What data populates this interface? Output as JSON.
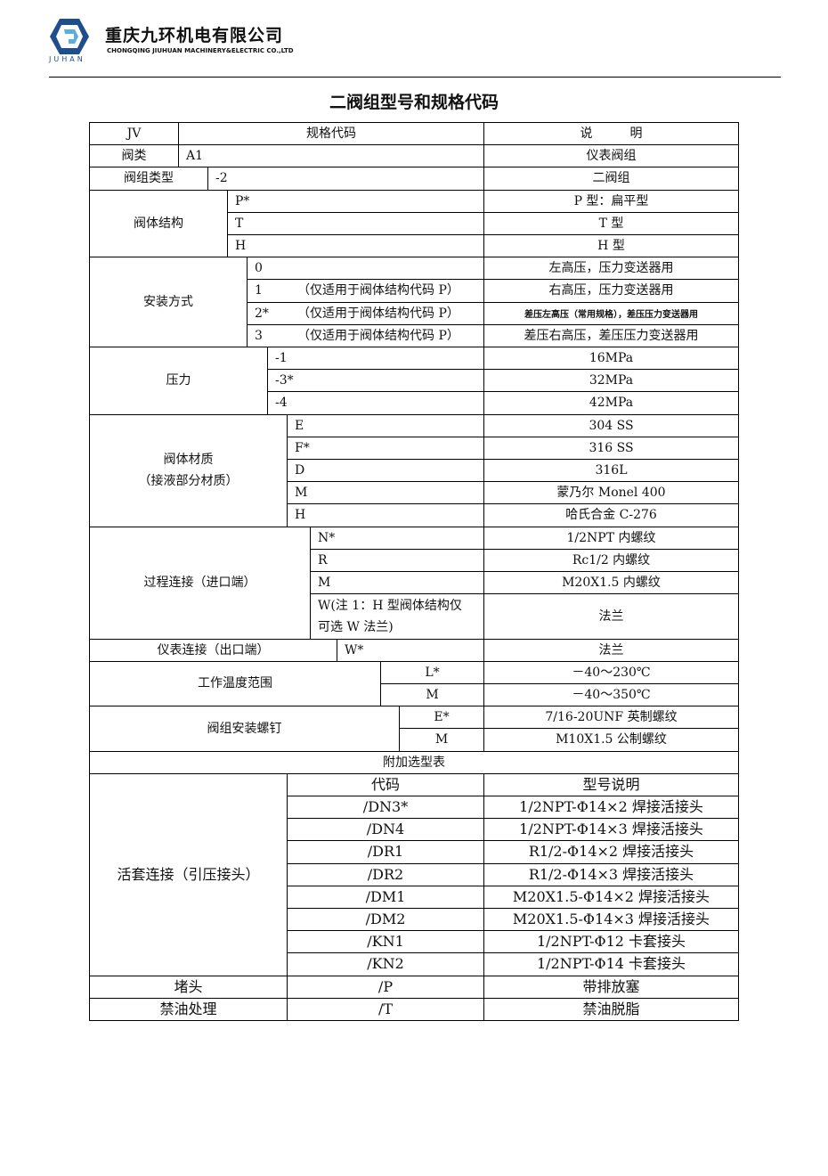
{
  "header": {
    "company_cn": "重庆九环机电有限公司",
    "company_en": "CHONGQING JIUHUAN MACHINERY&ELECTRIC CO.,LTD",
    "brand": "JUHAN",
    "logo_colors": [
      "#1f4e8c",
      "#5aaee0"
    ]
  },
  "doc_title": "二阀组型号和规格代码",
  "table_header": {
    "jv": "JV",
    "spec": "规格代码",
    "desc": "说　　　明"
  },
  "sections": [
    {
      "label": "阀类",
      "rows": [
        {
          "code": "A1",
          "desc": "仪表阀组"
        }
      ]
    },
    {
      "label": "阀组类型",
      "rows": [
        {
          "code": "-2",
          "desc": "二阀组"
        }
      ]
    },
    {
      "label": "阀体结构",
      "rows": [
        {
          "code": "P*",
          "desc": "P 型：扁平型"
        },
        {
          "code": "T",
          "desc": "T 型"
        },
        {
          "code": "H",
          "desc": "H 型"
        }
      ]
    },
    {
      "label": "安装方式",
      "rows": [
        {
          "code": "0",
          "desc": "左高压，压力变送器用"
        },
        {
          "code": "1",
          "note": "（仅适用于阀体结构代码 P）",
          "desc": "右高压，压力变送器用"
        },
        {
          "code": "2*",
          "note": "（仅适用于阀体结构代码 P）",
          "desc": "差压左高压（常用规格），差压压力变送器用"
        },
        {
          "code": "3",
          "note": "（仅适用于阀体结构代码 P）",
          "desc": "差压右高压，差压压力变送器用"
        }
      ]
    },
    {
      "label": "压力",
      "rows": [
        {
          "code": "-1",
          "desc": "16MPa"
        },
        {
          "code": "-3*",
          "desc": "32MPa"
        },
        {
          "code": "-4",
          "desc": "42MPa"
        }
      ]
    },
    {
      "label": "阀体材质\n（接液部分材质）",
      "rows": [
        {
          "code": "E",
          "desc": "304 SS"
        },
        {
          "code": "F*",
          "desc": "316 SS"
        },
        {
          "code": "D",
          "desc": "316L"
        },
        {
          "code": "M",
          "desc": "蒙乃尔 Monel 400"
        },
        {
          "code": "H",
          "desc": "哈氏合金 C-276"
        }
      ]
    },
    {
      "label": "过程连接（进口端）",
      "rows": [
        {
          "code": "N*",
          "desc": "1/2NPT 内螺纹"
        },
        {
          "code": "R",
          "desc": "Rc1/2 内螺纹"
        },
        {
          "code": "M",
          "desc": "M20X1.5 内螺纹"
        },
        {
          "code": "W(注 1：H 型阀体结构仅\n可选 W 法兰)",
          "desc": "法兰"
        }
      ]
    },
    {
      "label": "仪表连接（出口端）",
      "rows": [
        {
          "code": "W*",
          "desc": "法兰"
        }
      ]
    },
    {
      "label": "工作温度范围",
      "rows": [
        {
          "code": "L*",
          "desc": "－40～230℃"
        },
        {
          "code": "M",
          "desc": "－40～350℃"
        }
      ]
    },
    {
      "label": "阀组安装螺钉",
      "rows": [
        {
          "code": "E*",
          "desc": "7/16-20UNF 英制螺纹"
        },
        {
          "code": "M",
          "desc": "M10X1.5 公制螺纹"
        }
      ]
    }
  ],
  "addon": {
    "title": "附加选型表",
    "code_header": "代码",
    "desc_header": "型号说明",
    "groups": [
      {
        "label": "活套连接（引压接头）",
        "rows": [
          {
            "code": "/DN3*",
            "desc": "1/2NPT-Φ14×2 焊接活接头"
          },
          {
            "code": "/DN4",
            "desc": "1/2NPT-Φ14×3 焊接活接头"
          },
          {
            "code": "/DR1",
            "desc": "R1/2-Φ14×2 焊接活接头"
          },
          {
            "code": "/DR2",
            "desc": "R1/2-Φ14×3 焊接活接头"
          },
          {
            "code": "/DM1",
            "desc": "M20X1.5-Φ14×2 焊接活接头"
          },
          {
            "code": "/DM2",
            "desc": "M20X1.5-Φ14×3 焊接活接头"
          },
          {
            "code": "/KN1",
            "desc": "1/2NPT-Φ12 卡套接头"
          },
          {
            "code": "/KN2",
            "desc": "1/2NPT-Φ14 卡套接头"
          }
        ]
      },
      {
        "label": "堵头",
        "rows": [
          {
            "code": "/P",
            "desc": "带排放塞"
          }
        ]
      },
      {
        "label": "禁油处理",
        "rows": [
          {
            "code": "/T",
            "desc": "禁油脱脂"
          }
        ]
      }
    ]
  }
}
